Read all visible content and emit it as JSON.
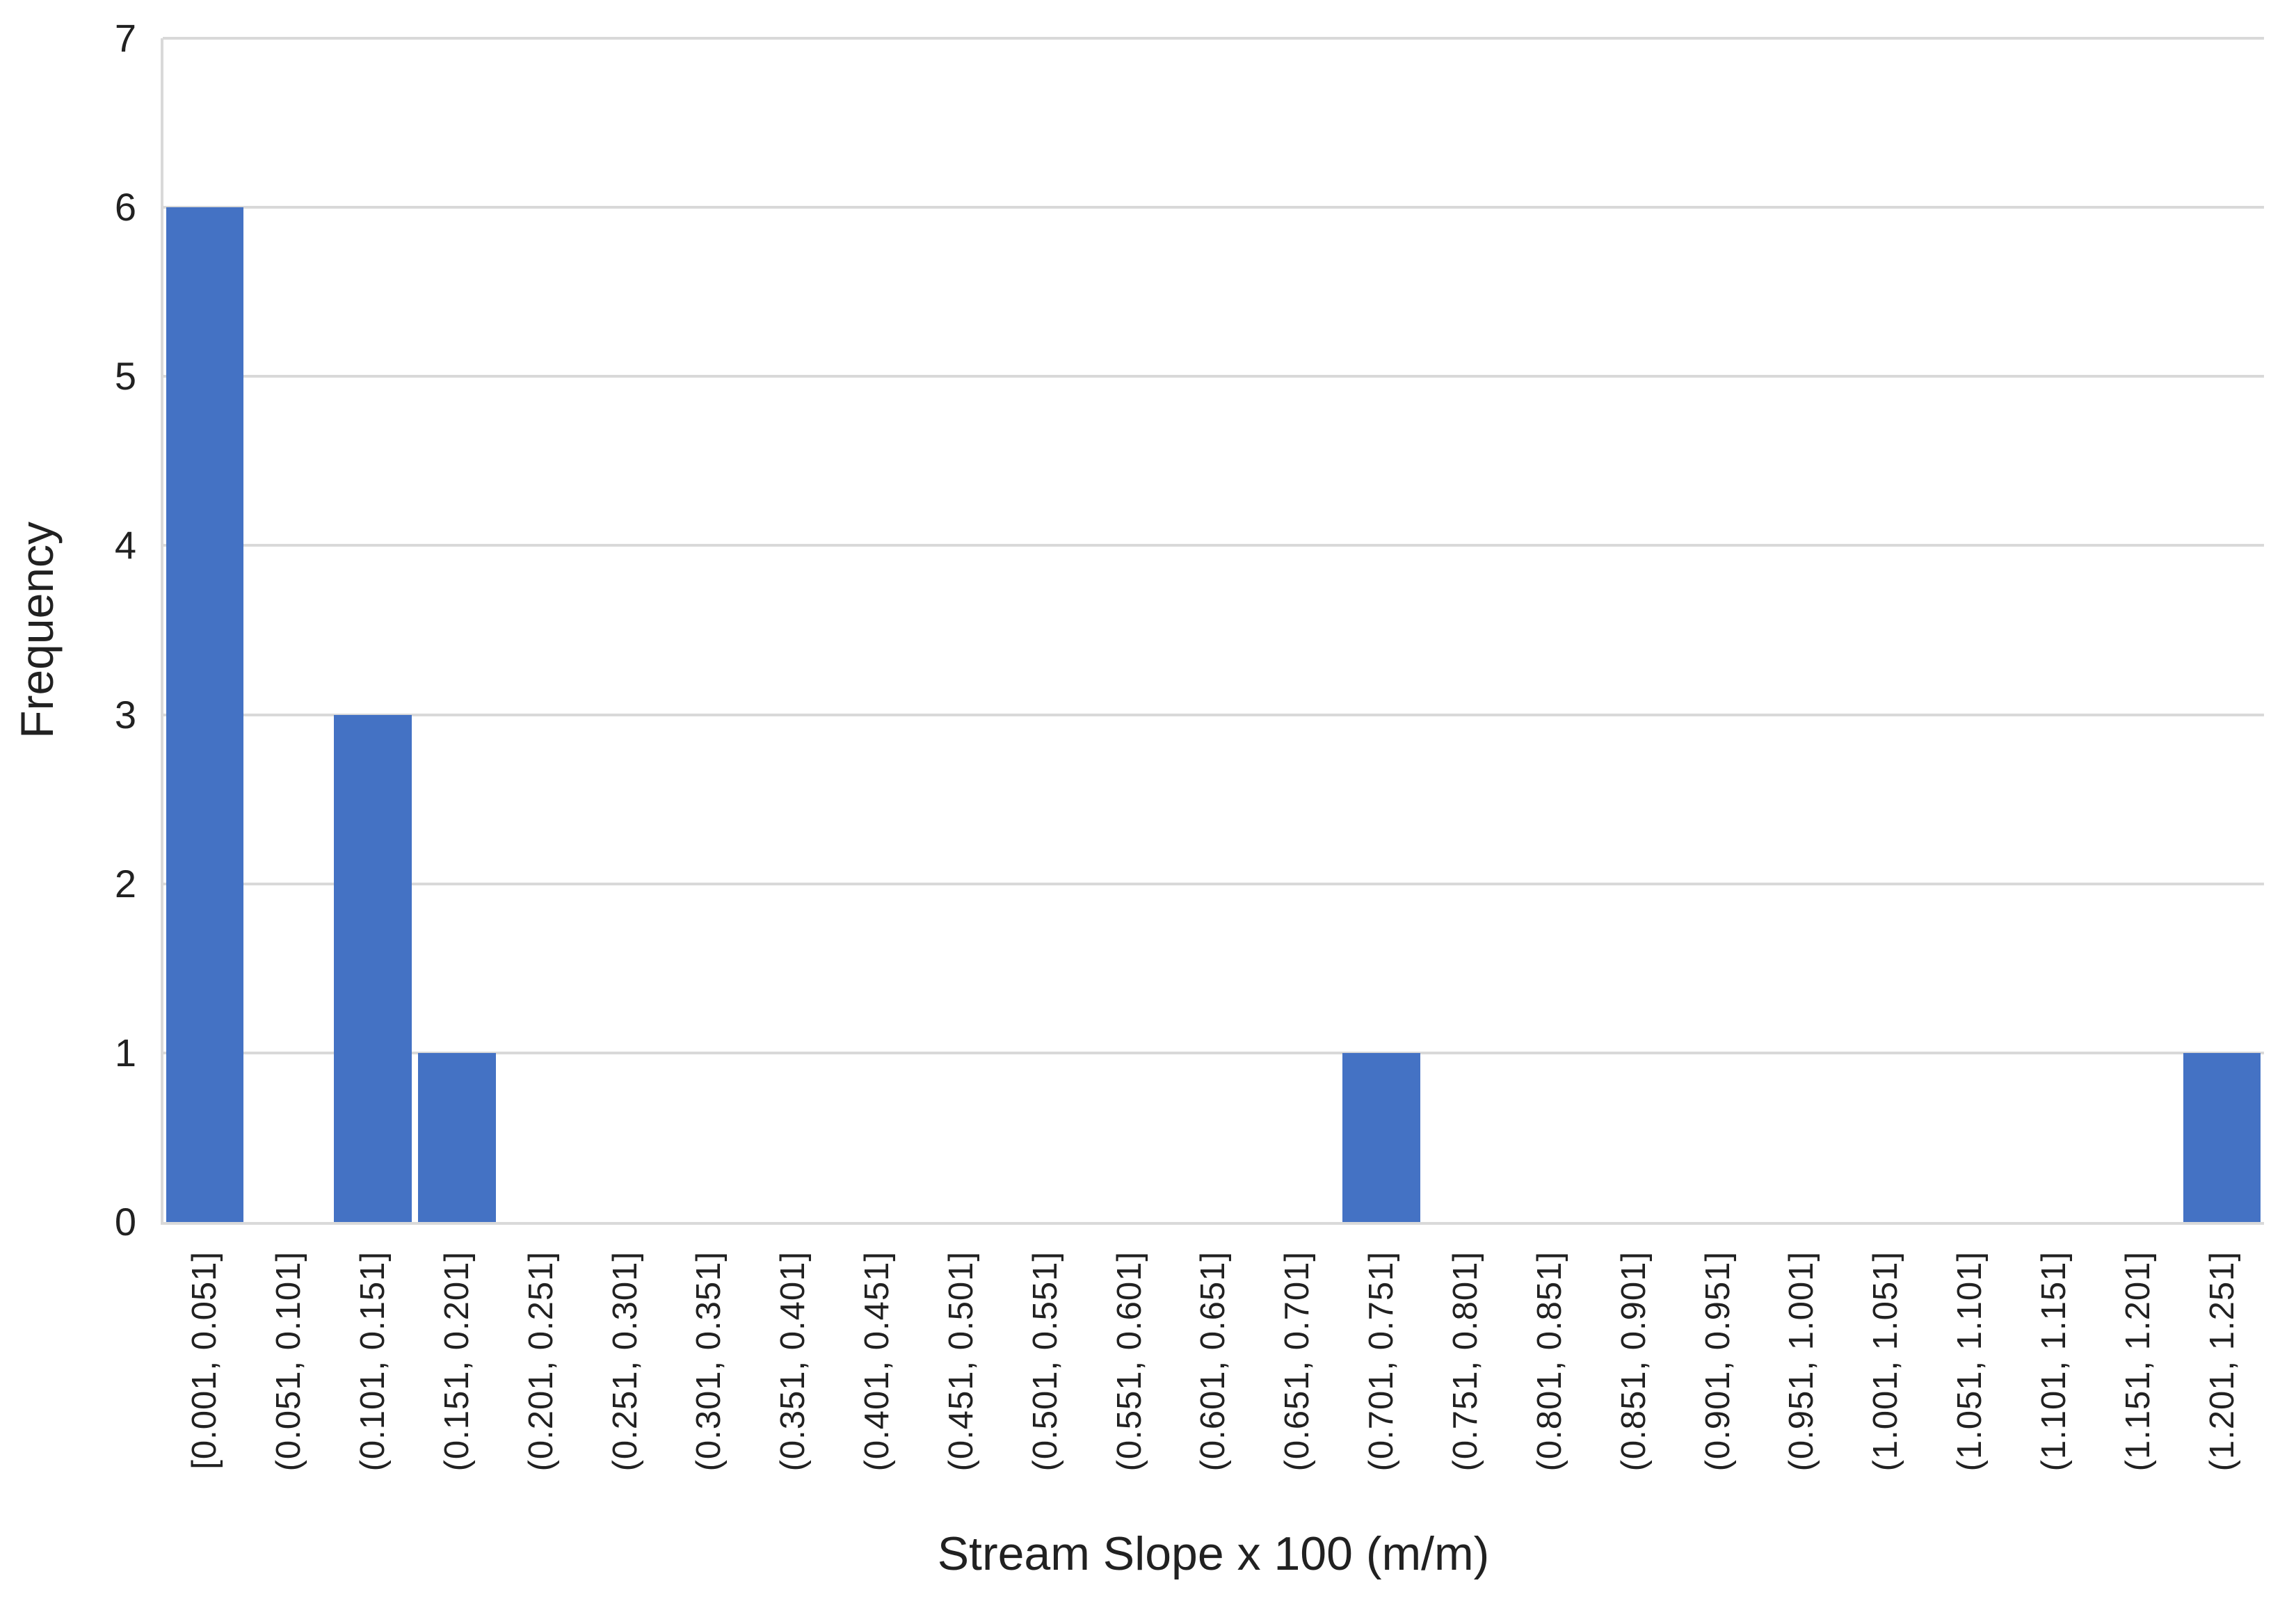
{
  "chart_data": {
    "type": "bar",
    "subtype": "histogram",
    "title": "",
    "xlabel": "Stream Slope x 100 (m/m)",
    "ylabel": "Frequency",
    "categories": [
      "[0.001, 0.051]",
      "(0.051, 0.101]",
      "(0.101, 0.151]",
      "(0.151, 0.201]",
      "(0.201, 0.251]",
      "(0.251, 0.301]",
      "(0.301, 0.351]",
      "(0.351, 0.401]",
      "(0.401, 0.451]",
      "(0.451, 0.501]",
      "(0.501, 0.551]",
      "(0.551, 0.601]",
      "(0.601, 0.651]",
      "(0.651, 0.701]",
      "(0.701, 0.751]",
      "(0.751, 0.801]",
      "(0.801, 0.851]",
      "(0.851, 0.901]",
      "(0.901, 0.951]",
      "(0.951, 1.001]",
      "(1.001, 1.051]",
      "(1.051, 1.101]",
      "(1.101, 1.151]",
      "(1.151, 1.201]",
      "(1.201, 1.251]"
    ],
    "values": [
      6,
      0,
      3,
      1,
      0,
      0,
      0,
      0,
      0,
      0,
      0,
      0,
      0,
      0,
      1,
      0,
      0,
      0,
      0,
      0,
      0,
      0,
      0,
      0,
      1
    ],
    "yticks": [
      0,
      1,
      2,
      3,
      4,
      5,
      6,
      7
    ],
    "ylim": [
      0,
      7
    ],
    "grid": "horizontal",
    "legend": "none",
    "colors": {
      "bar": "#4472C4",
      "gridline": "#D9D9D9",
      "axis_line": "#D9D9D9",
      "text": "#212121"
    }
  }
}
